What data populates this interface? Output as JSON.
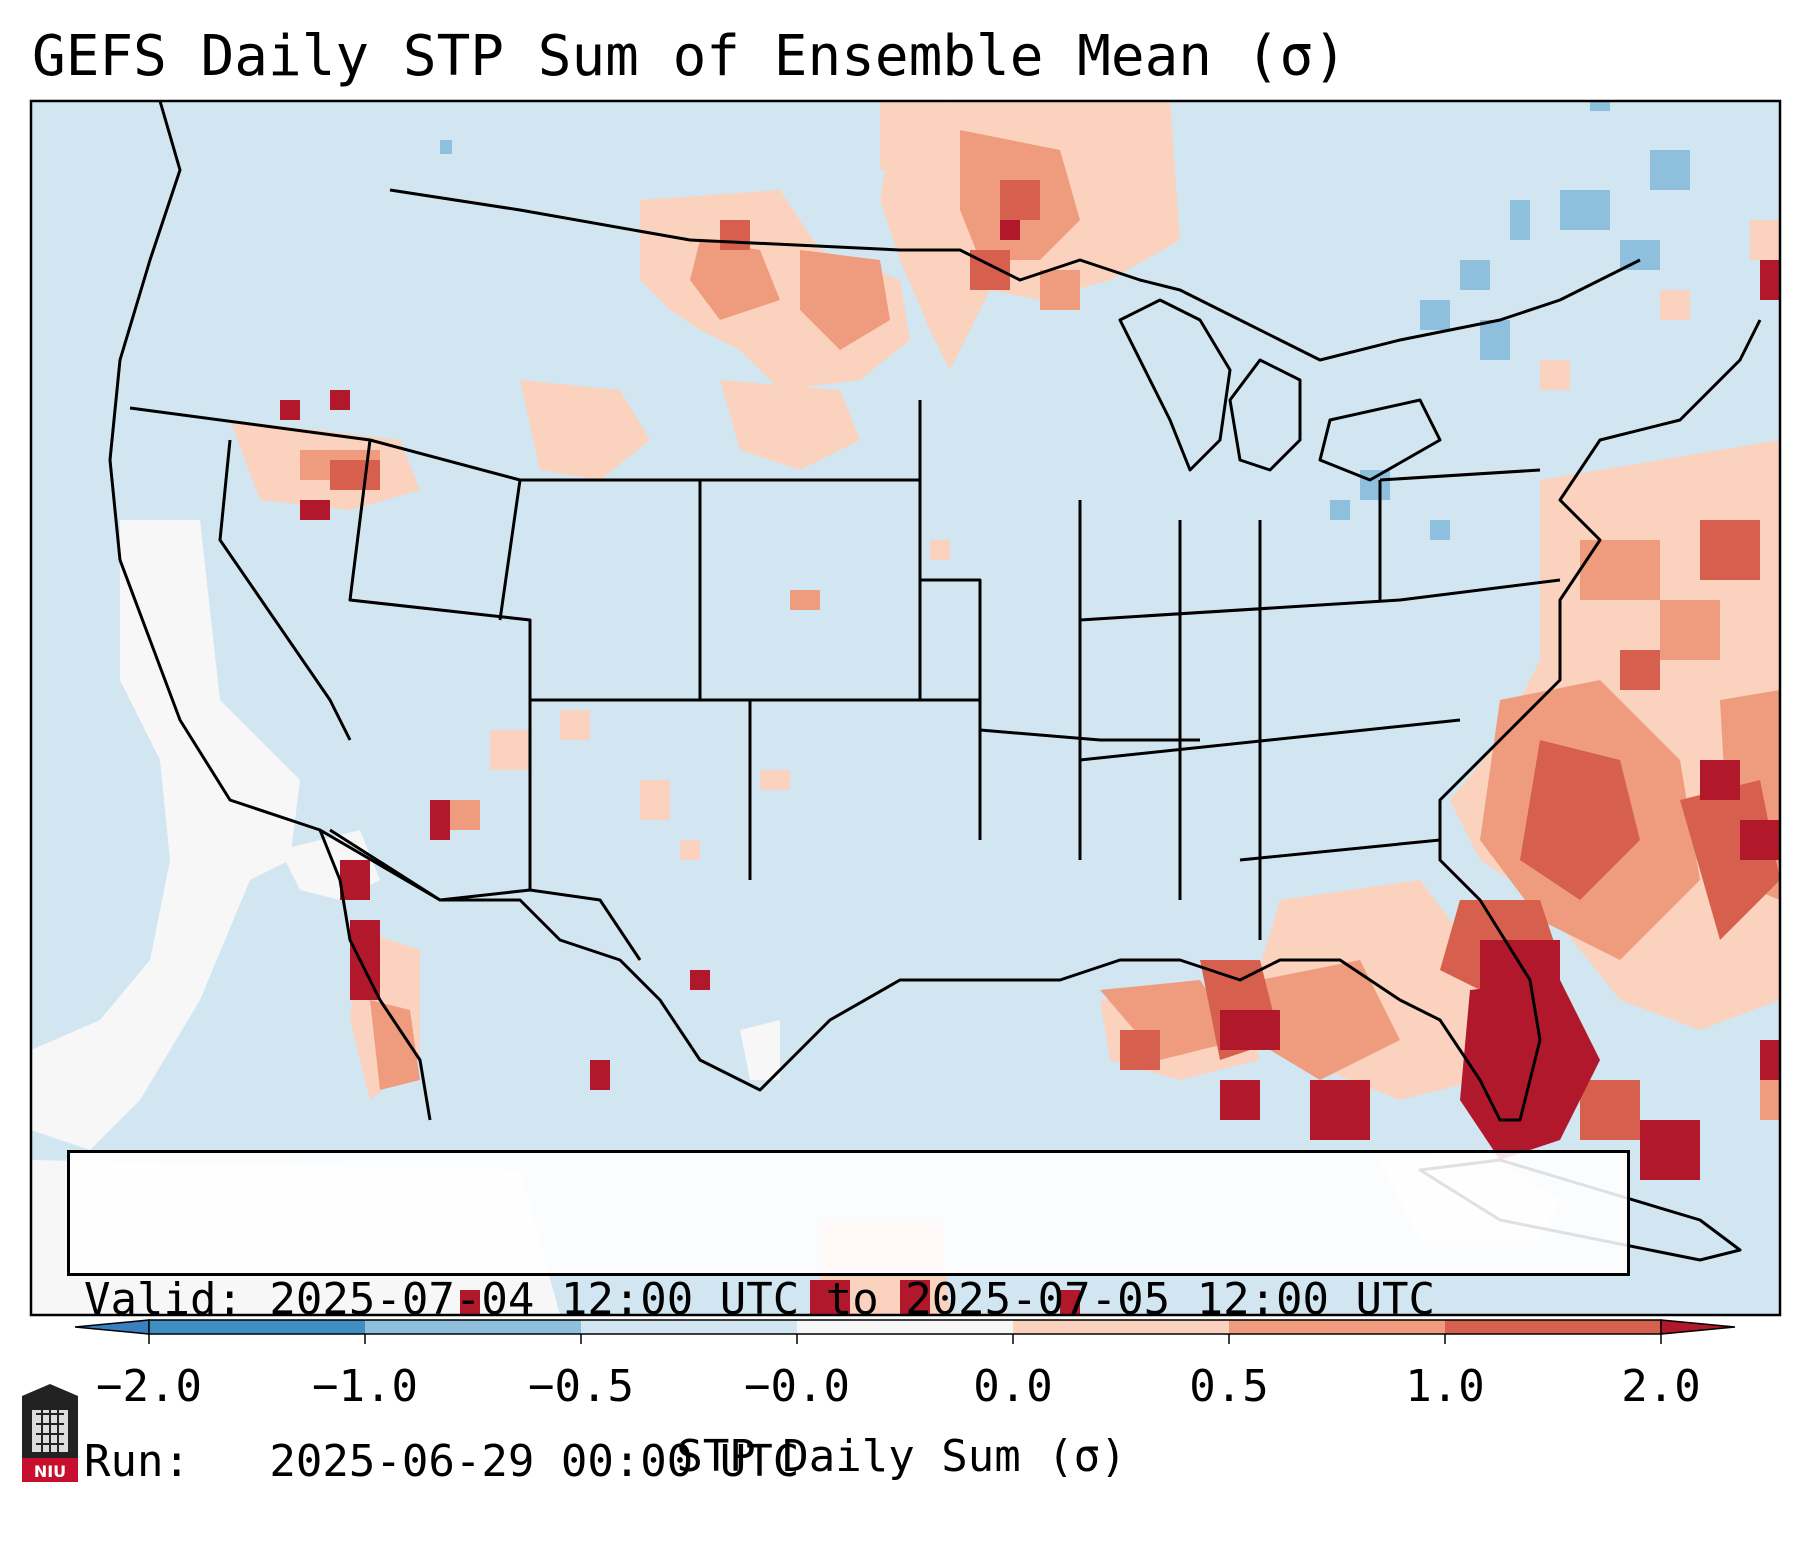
{
  "title": "GEFS Daily STP Sum of Ensemble Mean (σ)",
  "info_box": {
    "valid_line": "Valid: 2025-07-04 12:00 UTC to 2025-07-05 12:00 UTC",
    "run_line": "Run:   2025-06-29 00:00 UTC"
  },
  "colorbar": {
    "label": "STP Daily Sum (σ)",
    "tick_labels": [
      "−2.0",
      "−1.0",
      "−0.5",
      "−0.0",
      "0.0",
      "0.5",
      "1.0",
      "2.0"
    ],
    "segments": [
      {
        "range": "< -2.0",
        "color": "#3a80c0"
      },
      {
        "range": "-2.0 to -1.0",
        "color": "#3e8ec4"
      },
      {
        "range": "-1.0 to -0.5",
        "color": "#8ec0de"
      },
      {
        "range": "-0.5 to -0.0",
        "color": "#d2e6f1"
      },
      {
        "range": "-0.0 to 0.0",
        "color": "#f7f7f7"
      },
      {
        "range": "0.0 to 0.5",
        "color": "#fbd2bd"
      },
      {
        "range": "0.5 to 1.0",
        "color": "#ef9c7e"
      },
      {
        "range": "1.0 to 2.0",
        "color": "#d6604d"
      },
      {
        "range": "> 2.0",
        "color": "#b2182b"
      }
    ]
  },
  "map": {
    "region": "Continental United States",
    "background_color": "#d2e6f1",
    "anomaly_cells": [
      {
        "region": "Montana / North Dakota",
        "level": "0.0-0.5"
      },
      {
        "region": "Northern Minnesota / Ontario",
        "level": "0.5-1.0"
      },
      {
        "region": "Idaho / Oregon",
        "level": "1.0-2.0"
      },
      {
        "region": "Gulf of Mexico",
        "level": "> 2.0"
      },
      {
        "region": "Florida / Western Atlantic",
        "level": "> 2.0"
      },
      {
        "region": "Pacific coast",
        "level": "-0.0 to 0.0"
      },
      {
        "region": "Quebec / New England",
        "level": "-1.0 to -0.5"
      }
    ]
  },
  "logo": {
    "text": "NIU"
  }
}
